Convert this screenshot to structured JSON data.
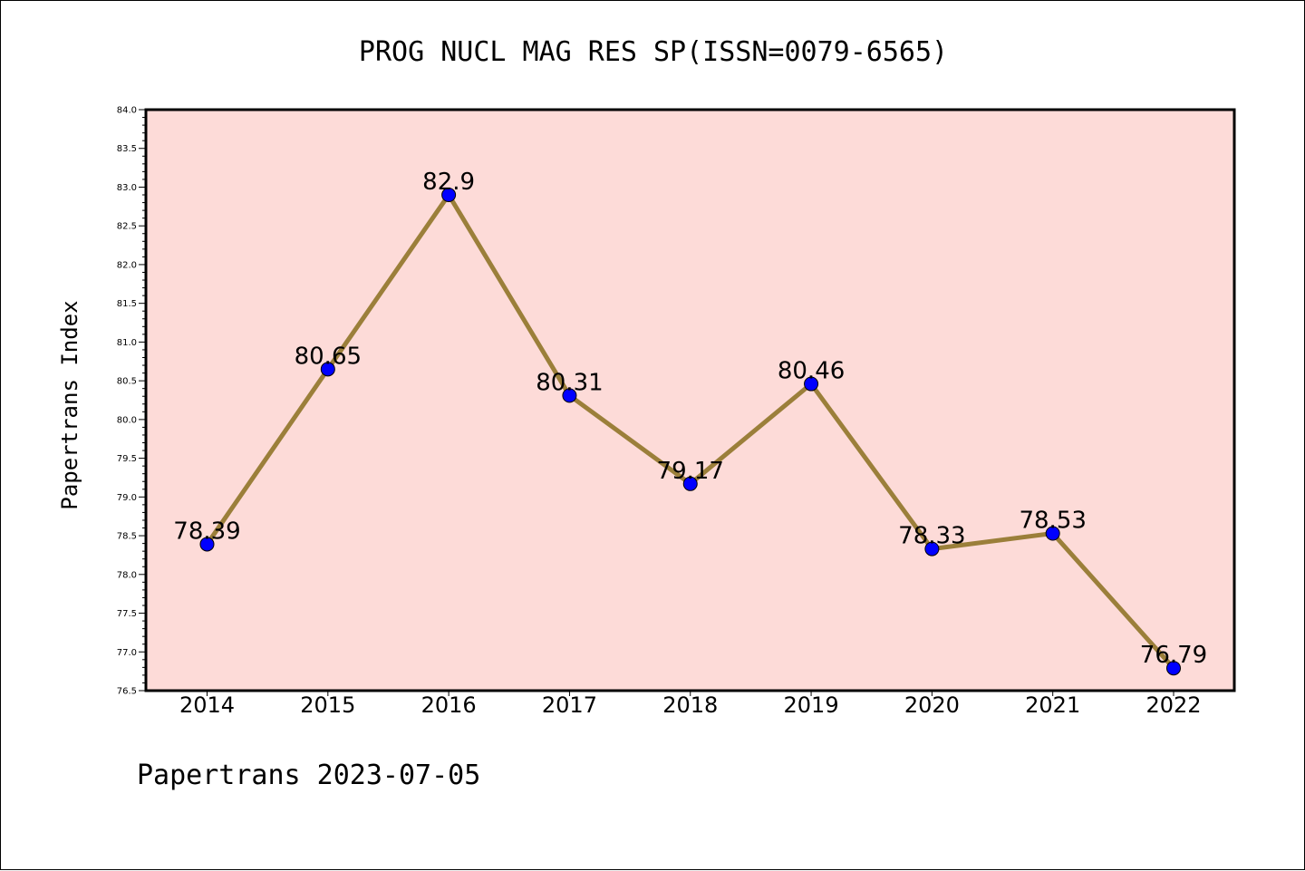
{
  "chart_data": {
    "type": "line",
    "title": "PROG NUCL MAG RES SP(ISSN=0079-6565)",
    "ylabel": "Papertrans Index",
    "xlabel": "",
    "footer": "Papertrans 2023-07-05",
    "categories": [
      "2014",
      "2015",
      "2016",
      "2017",
      "2018",
      "2019",
      "2020",
      "2021",
      "2022"
    ],
    "values": [
      78.39,
      80.65,
      82.9,
      80.31,
      79.17,
      80.46,
      78.33,
      78.53,
      76.79
    ],
    "data_labels": [
      "78.39",
      "80.65",
      "82.9",
      "80.31",
      "79.17",
      "80.46",
      "78.33",
      "78.53",
      "76.79"
    ],
    "ylim": [
      76.5,
      84.0
    ],
    "yticks": [
      "76.5",
      "77.0",
      "77.5",
      "78.0",
      "78.5",
      "79.0",
      "79.5",
      "80.0",
      "80.5",
      "81.0",
      "81.5",
      "82.0",
      "82.5",
      "83.0",
      "83.5",
      "84.0"
    ],
    "grid": false,
    "colors": {
      "plot_background": "#fddbd8",
      "line": "#9b7f3a",
      "marker": "#0000ff"
    }
  }
}
